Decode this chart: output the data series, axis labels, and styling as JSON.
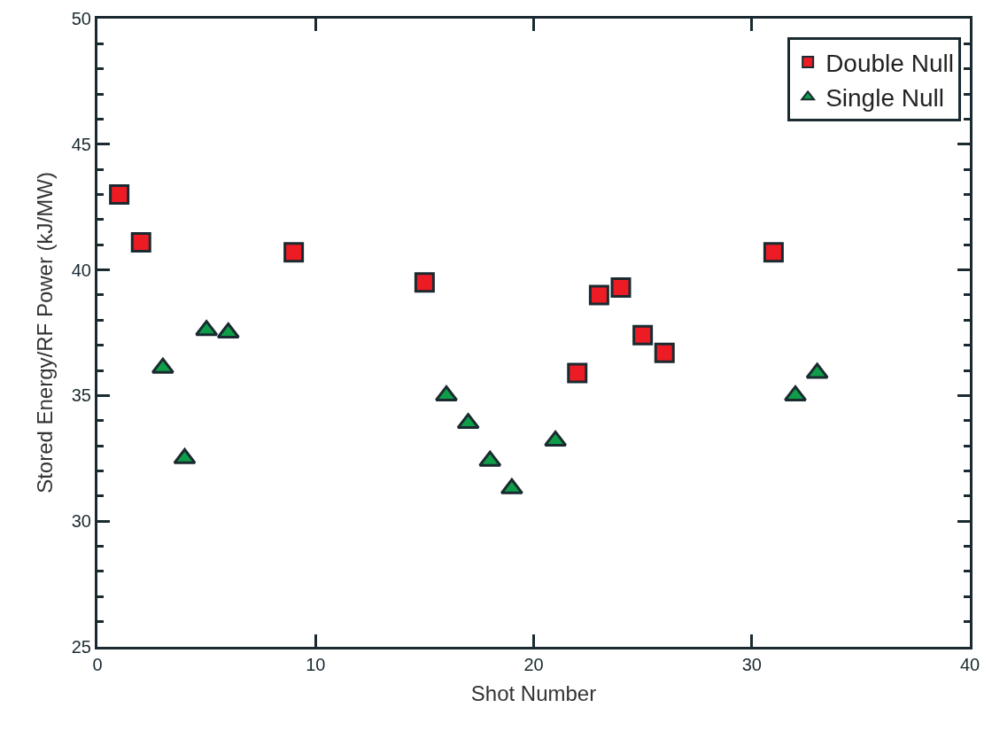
{
  "chart_data": {
    "type": "scatter",
    "xlabel": "Shot Number",
    "ylabel": "Stored Energy/RF Power (kJ/MW)",
    "xlim": [
      0,
      40
    ],
    "xticks": [
      0,
      10,
      20,
      30,
      40
    ],
    "ylim": [
      25,
      50
    ],
    "yticks": [
      25,
      30,
      35,
      40,
      45,
      50
    ],
    "legend": "top right",
    "series": [
      {
        "name": "Double Null",
        "color": "#ed1c24",
        "marker": "square",
        "x": [
          1,
          2,
          9,
          15,
          22,
          23,
          24,
          25,
          26,
          31
        ],
        "values": [
          43.0,
          41.1,
          40.7,
          39.5,
          35.9,
          39.0,
          39.3,
          37.4,
          36.7,
          40.7
        ]
      },
      {
        "name": "Single Null",
        "color": "#0f9d4a",
        "marker": "triangle",
        "x": [
          3,
          4,
          5,
          6,
          16,
          17,
          18,
          19,
          21,
          32,
          33
        ],
        "values": [
          36.1,
          32.5,
          37.6,
          37.5,
          35.0,
          33.9,
          32.4,
          31.3,
          33.2,
          35.0,
          35.9
        ]
      }
    ]
  }
}
